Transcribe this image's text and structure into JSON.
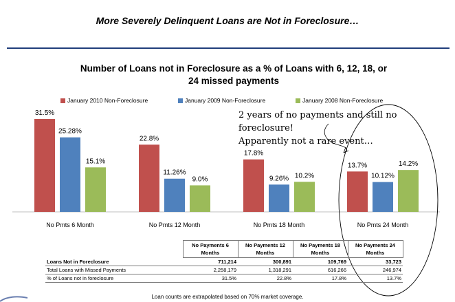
{
  "slide_title": "More Severely Delinquent Loans are Not in Foreclosure…",
  "chart_title_line1": "Number of Loans not in Foreclosure as a % of Loans with 6, 12, 18, or",
  "chart_title_line2": "24 missed payments",
  "annotation_line1": "2 years of no payments and still no foreclosure!",
  "annotation_line2": "Apparently not a rare event…",
  "footnote": "Loan counts are extrapolated based on 70% market coverage.",
  "colors": {
    "jan2010": "#c0504d",
    "jan2009": "#4f81bd",
    "jan2008": "#9bbb59",
    "rule": "#1f3d7a"
  },
  "chart_data": {
    "type": "bar",
    "categories": [
      "No Pmts 6 Month",
      "No Pmts 12 Month",
      "No Pmts 18 Month",
      "No Pmts 24 Month"
    ],
    "series": [
      {
        "name": "January 2010 Non-Foreclosure",
        "values": [
          31.5,
          22.8,
          17.8,
          13.7
        ],
        "labels": [
          "31.5%",
          "22.8%",
          "17.8%",
          "13.7%"
        ],
        "color": "#c0504d"
      },
      {
        "name": "January 2009 Non-Foreclosure",
        "values": [
          25.28,
          11.26,
          9.26,
          10.12
        ],
        "labels": [
          "25.28%",
          "11.26%",
          "9.26%",
          "10.12%"
        ],
        "color": "#4f81bd"
      },
      {
        "name": "January 2008 Non-Foreclosure",
        "values": [
          15.1,
          9.0,
          10.2,
          14.2
        ],
        "labels": [
          "15.1%",
          "9.0%",
          "10.2%",
          "14.2%"
        ],
        "color": "#9bbb59"
      }
    ],
    "title": "Number of Loans not in Foreclosure as a % of Loans with 6, 12, 18, or 24 missed payments",
    "ylim": [
      0,
      35
    ],
    "grid": false,
    "legend": "top"
  },
  "table": {
    "headers": [
      "No Payments 6 Months",
      "No Payments 12 Months",
      "No Payments 18 Months",
      "No Payments 24 Months"
    ],
    "rows": [
      {
        "label": "Loans Not in Foreclosure",
        "values": [
          "711,214",
          "300,891",
          "109,769",
          "33,723"
        ],
        "bold": true
      },
      {
        "label": "Total Loans with Missed Payments",
        "values": [
          "2,258,179",
          "1,318,291",
          "616,266",
          "246,974"
        ],
        "bold": false
      },
      {
        "label": "% of Loans not in foreclosure",
        "values": [
          "31.5%",
          "22.8%",
          "17.8%",
          "13.7%"
        ],
        "bold": false
      }
    ]
  }
}
